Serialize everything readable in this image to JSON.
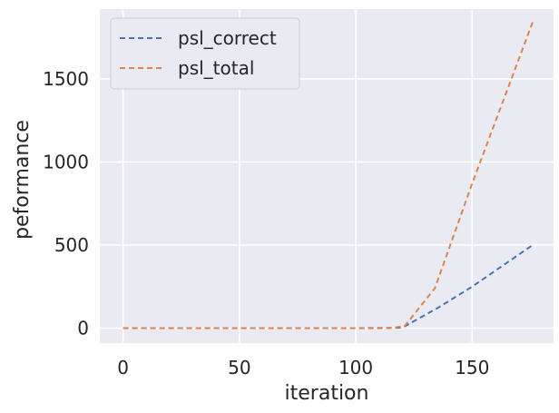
{
  "chart_data": {
    "type": "line",
    "xlabel": "iteration",
    "ylabel": "peformance",
    "xlim": [
      -10,
      185
    ],
    "ylim": [
      -90,
      1920
    ],
    "xticks": [
      0,
      50,
      100,
      150
    ],
    "yticks": [
      0,
      500,
      1000,
      1500
    ],
    "xtick_labels": [
      "0",
      "50",
      "100",
      "150"
    ],
    "ytick_labels": [
      "0",
      "500",
      "1000",
      "1500"
    ],
    "grid": true,
    "legend_position": "upper-left",
    "series": [
      {
        "name": "psl_correct",
        "color": "#4c72b0",
        "style": "dashed",
        "x": [
          0,
          20,
          40,
          60,
          80,
          100,
          115,
          120,
          135,
          150,
          176
        ],
        "y": [
          0,
          0,
          0,
          0,
          0,
          0,
          1,
          3,
          120,
          250,
          500
        ]
      },
      {
        "name": "psl_total",
        "color": "#dd8452",
        "style": "dashed",
        "x": [
          0,
          20,
          40,
          60,
          80,
          100,
          115,
          121,
          134,
          150,
          176
        ],
        "y": [
          0,
          0,
          0,
          0,
          0,
          0,
          2,
          12,
          240,
          870,
          1840
        ]
      }
    ]
  }
}
